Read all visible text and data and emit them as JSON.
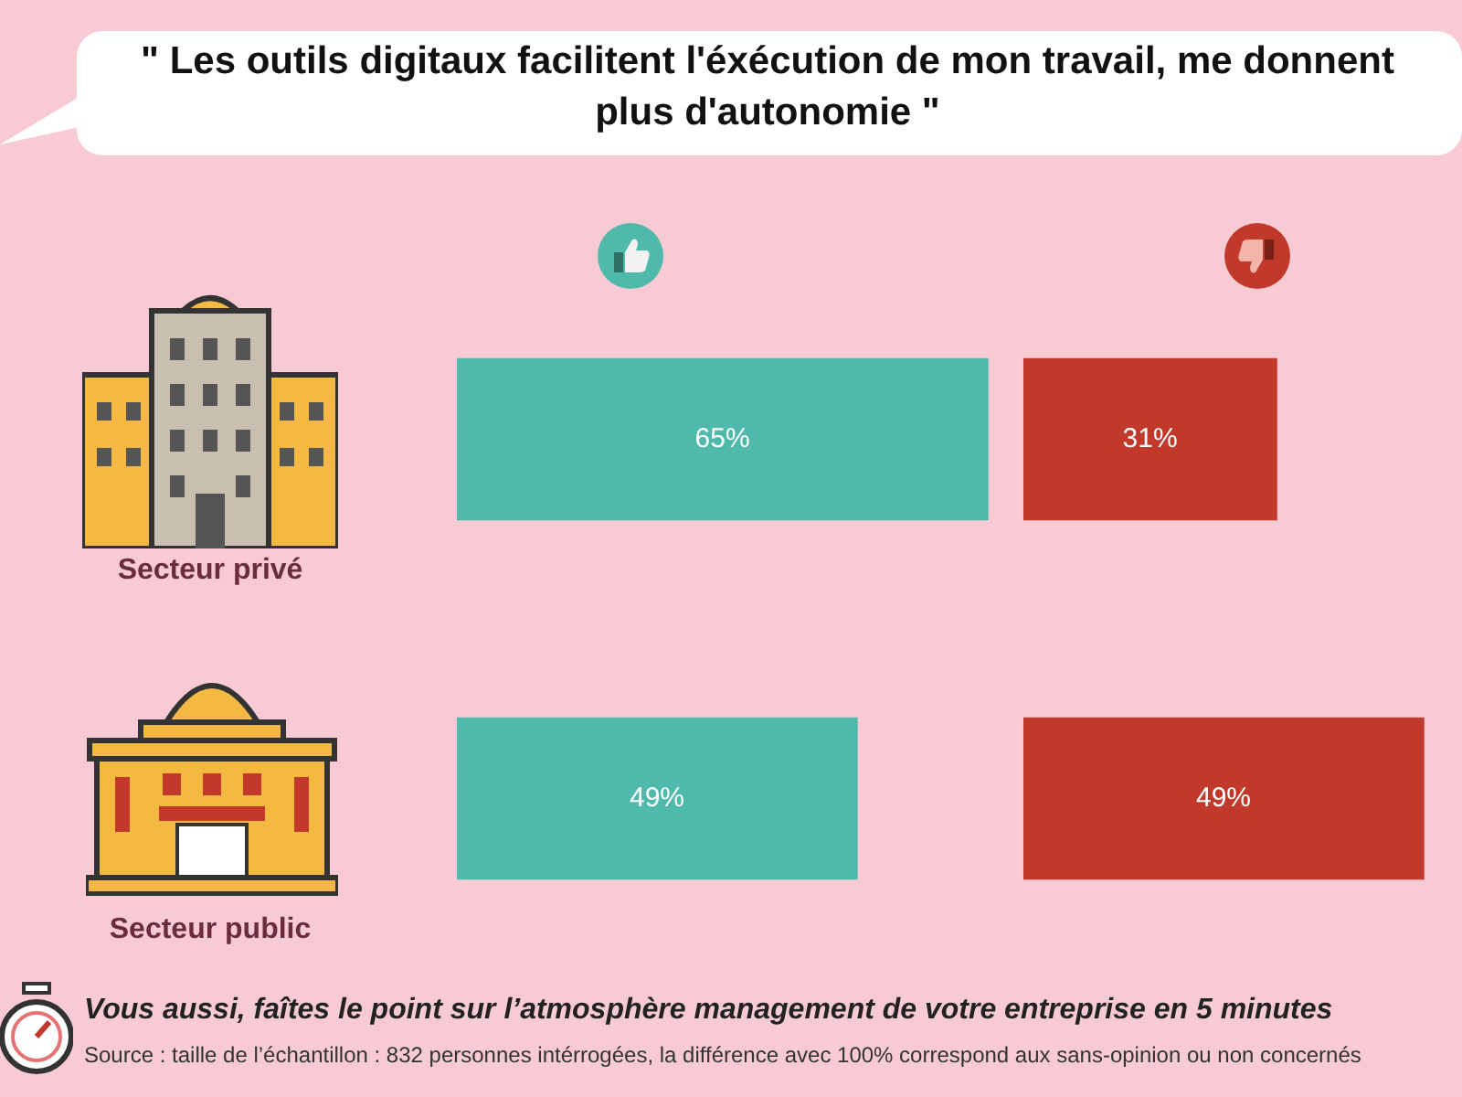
{
  "chart_data": [
    {
      "type": "bar",
      "orientation": "horizontal",
      "title": "\" Les outils digitaux facilitent l'éxécution de mon travail, me donnent plus d'autonomie \"",
      "categories": [
        "Secteur privé",
        "Secteur public"
      ],
      "series": [
        {
          "color": "#4fbaab",
          "values": [
            65,
            49
          ],
          "value_labels": [
            "65%",
            "49%"
          ]
        }
      ],
      "annotations": [
        "Vous aussi, faîtes le point sur l’atmosphère management de votre entreprise en 5 minutes",
        "Source : taille de l’échantillon : 832 personnes intérrogées, la différence avec 100% correspond aux sans-opinion ou non concernés"
      ]
    },
    {
      "type": "bar",
      "orientation": "horizontal",
      "categories": [
        null,
        null
      ],
      "series": [
        {
          "color": "#c0392b",
          "values": [
            31,
            49
          ],
          "value_labels": [
            "31%",
            "49%"
          ]
        }
      ]
    }
  ]
}
